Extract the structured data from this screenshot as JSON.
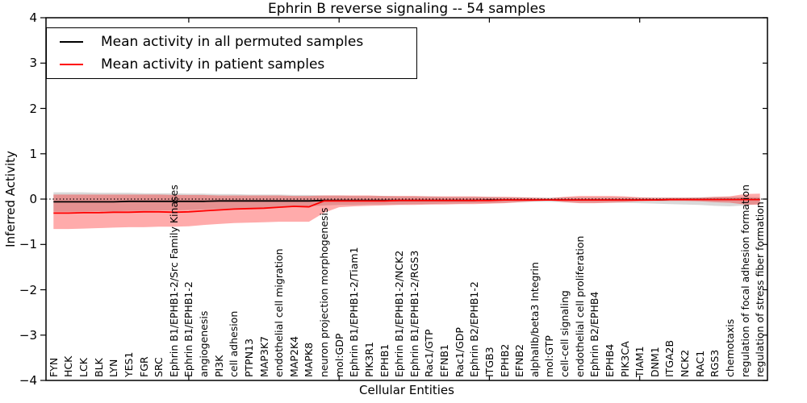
{
  "chart_data": {
    "type": "line",
    "title": "Ephrin B reverse signaling -- 54 samples",
    "xlabel": "Cellular Entities",
    "ylabel": "Inferred Activity",
    "ylim": [
      -4,
      4
    ],
    "ytick_values": [
      4,
      3,
      2,
      1,
      0,
      -1,
      -2,
      -3,
      -4
    ],
    "ytick_labels": [
      "4",
      "3",
      "2",
      "1",
      "0",
      "−1",
      "−2",
      "−3",
      "−4"
    ],
    "x_tick_data_indices": [
      9,
      19,
      29,
      39
    ],
    "grid": false,
    "legend": {
      "position": "upper left",
      "entries": [
        "Mean activity in all permuted samples",
        "Mean activity in patient samples"
      ]
    },
    "zero_reference_line": {
      "y": 0,
      "style": "dotted",
      "color": "#000000"
    },
    "colors": {
      "permuted_line": "#000000",
      "patient_line": "#ff0000",
      "permuted_band": "rgba(128,128,128,0.30)",
      "patient_band": "rgba(255,0,0,0.33)"
    },
    "categories": [
      "FYN",
      "HCK",
      "LCK",
      "BLK",
      "LYN",
      "YES1",
      "FGR",
      "SRC",
      "Ephrin B1/EPHB1-2/Src Family Kinases",
      "Ephrin B1/EPHB1-2",
      "angiogenesis",
      "PI3K",
      "cell adhesion",
      "PTPN13",
      "MAP3K7",
      "endothelial cell migration",
      "MAP2K4",
      "MAPK8",
      "neuron projection morphogenesis",
      "mol:GDP",
      "Ephrin B1/EPHB1-2/Tiam1",
      "PIK3R1",
      "EPHB1",
      "Ephrin B1/EPHB1-2/NCK2",
      "Ephrin B1/EPHB1-2/RGS3",
      "Rac1/GTP",
      "EFNB1",
      "Rac1/GDP",
      "Ephrin B2/EPHB1-2",
      "ITGB3",
      "EPHB2",
      "EFNB2",
      "alphaIIb/beta3 Integrin",
      "mol:GTP",
      "cell-cell signaling",
      "endothelial cell proliferation",
      "Ephrin B2/EPHB4",
      "EPHB4",
      "PIK3CA",
      "TIAM1",
      "DNM1",
      "ITGA2B",
      "NCK2",
      "RAC1",
      "RGS3",
      "chemotaxis",
      "regulation of focal adhesion formation",
      "regulation of stress fiber formation"
    ],
    "series": [
      {
        "name": "Mean activity in all permuted samples",
        "kind": "line",
        "color": "#000000",
        "values": [
          -0.06,
          -0.06,
          -0.06,
          -0.06,
          -0.06,
          -0.05,
          -0.05,
          -0.05,
          -0.05,
          -0.05,
          -0.05,
          -0.04,
          -0.04,
          -0.04,
          -0.04,
          -0.04,
          -0.04,
          -0.04,
          -0.03,
          -0.03,
          -0.03,
          -0.03,
          -0.03,
          -0.03,
          -0.03,
          -0.03,
          -0.03,
          -0.03,
          -0.03,
          -0.02,
          -0.02,
          -0.02,
          -0.02,
          -0.02,
          -0.02,
          -0.02,
          -0.02,
          -0.02,
          -0.02,
          -0.02,
          -0.02,
          -0.01,
          -0.01,
          -0.01,
          -0.01,
          -0.01,
          -0.01,
          -0.01
        ]
      },
      {
        "name": "Permuted samples band",
        "kind": "band",
        "color": "rgba(128,128,128,0.30)",
        "upper": [
          0.15,
          0.15,
          0.15,
          0.14,
          0.14,
          0.14,
          0.13,
          0.13,
          0.13,
          0.12,
          0.12,
          0.11,
          0.11,
          0.1,
          0.1,
          0.1,
          0.09,
          0.09,
          0.08,
          0.08,
          0.07,
          0.07,
          0.07,
          0.06,
          0.06,
          0.06,
          0.05,
          0.05,
          0.05,
          0.05,
          0.04,
          0.04,
          0.03,
          0.03,
          0.04,
          0.04,
          0.04,
          0.04,
          0.04,
          0.03,
          0.03,
          0.03,
          0.03,
          0.04,
          0.05,
          0.05,
          0.05,
          0.04
        ],
        "lower": [
          -0.28,
          -0.28,
          -0.28,
          -0.27,
          -0.27,
          -0.26,
          -0.26,
          -0.25,
          -0.25,
          -0.24,
          -0.23,
          -0.22,
          -0.21,
          -0.2,
          -0.19,
          -0.18,
          -0.17,
          -0.16,
          -0.14,
          -0.13,
          -0.13,
          -0.12,
          -0.12,
          -0.12,
          -0.11,
          -0.11,
          -0.1,
          -0.1,
          -0.09,
          -0.09,
          -0.08,
          -0.07,
          -0.06,
          -0.06,
          -0.07,
          -0.08,
          -0.08,
          -0.08,
          -0.08,
          -0.09,
          -0.1,
          -0.11,
          -0.12,
          -0.13,
          -0.15,
          -0.16,
          -0.14,
          -0.1
        ]
      },
      {
        "name": "Mean activity in patient samples",
        "kind": "line",
        "color": "#ff0000",
        "values": [
          -0.31,
          -0.31,
          -0.3,
          -0.3,
          -0.29,
          -0.29,
          -0.28,
          -0.28,
          -0.29,
          -0.28,
          -0.26,
          -0.24,
          -0.22,
          -0.21,
          -0.2,
          -0.18,
          -0.16,
          -0.17,
          -0.04,
          -0.04,
          -0.04,
          -0.04,
          -0.04,
          -0.03,
          -0.03,
          -0.03,
          -0.03,
          -0.03,
          -0.03,
          -0.03,
          -0.02,
          -0.02,
          -0.02,
          -0.02,
          -0.02,
          -0.02,
          -0.02,
          -0.02,
          -0.02,
          -0.02,
          -0.02,
          -0.01,
          -0.01,
          -0.01,
          -0.01,
          -0.01,
          -0.01,
          -0.01
        ]
      },
      {
        "name": "Patient samples band",
        "kind": "band",
        "color": "rgba(255,0,0,0.33)",
        "upper": [
          0.1,
          0.1,
          0.1,
          0.1,
          0.1,
          0.1,
          0.1,
          0.1,
          0.09,
          0.09,
          0.09,
          0.08,
          0.08,
          0.08,
          0.08,
          0.08,
          0.07,
          0.07,
          0.08,
          0.08,
          0.08,
          0.08,
          0.07,
          0.07,
          0.07,
          0.06,
          0.06,
          0.06,
          0.06,
          0.05,
          0.05,
          0.04,
          0.03,
          0.02,
          0.05,
          0.07,
          0.07,
          0.07,
          0.06,
          0.04,
          0.03,
          0.03,
          0.03,
          0.03,
          0.05,
          0.06,
          0.11,
          0.12
        ],
        "lower": [
          -0.66,
          -0.66,
          -0.65,
          -0.64,
          -0.63,
          -0.62,
          -0.62,
          -0.61,
          -0.61,
          -0.6,
          -0.57,
          -0.55,
          -0.53,
          -0.52,
          -0.51,
          -0.5,
          -0.5,
          -0.5,
          -0.3,
          -0.18,
          -0.16,
          -0.15,
          -0.14,
          -0.13,
          -0.13,
          -0.12,
          -0.12,
          -0.11,
          -0.11,
          -0.1,
          -0.09,
          -0.07,
          -0.05,
          -0.03,
          -0.07,
          -0.09,
          -0.09,
          -0.08,
          -0.07,
          -0.05,
          -0.04,
          -0.04,
          -0.04,
          -0.05,
          -0.07,
          -0.08,
          -0.12,
          -0.13
        ]
      }
    ]
  }
}
